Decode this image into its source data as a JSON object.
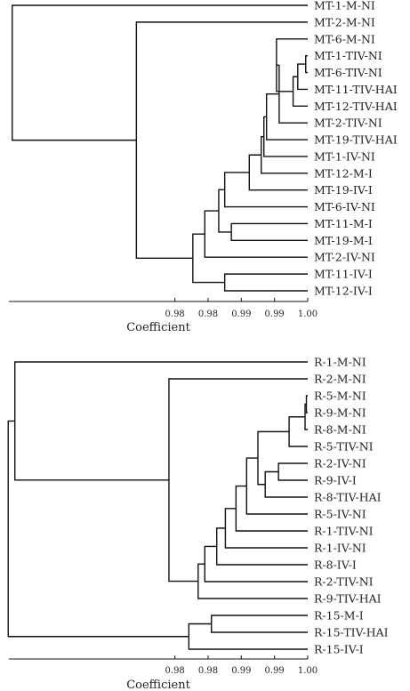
{
  "panels": [
    {
      "id": "top",
      "axis_title": "Coefficient",
      "ticks": [
        {
          "value": 0.98,
          "label": "0.98"
        },
        {
          "value": 0.985,
          "label": "0.98"
        },
        {
          "value": 0.99,
          "label": "0.99"
        },
        {
          "value": 0.995,
          "label": "0.99"
        },
        {
          "value": 1.0,
          "label": "1.00"
        }
      ],
      "leaves": [
        "MT-1-M-NI",
        "MT-2-M-NI",
        "MT-6-M-NI",
        "MT-1-TIV-NI",
        "MT-6-TIV-NI",
        "MT-11-TIV-HAI",
        "MT-12-TIV-HAI",
        "MT-2-TIV-NI",
        "MT-19-TIV-HAI",
        "MT-1-IV-NI",
        "MT-12-M-I",
        "MT-19-IV-I",
        "MT-6-IV-NI",
        "MT-11-M-I",
        "MT-19-M-I",
        "MT-2-IV-NI",
        "MT-11-IV-I",
        "MT-12-IV-I"
      ],
      "merges": [
        {
          "a": "L3",
          "b": "L4",
          "height": 0.9997
        },
        {
          "a": "L5",
          "b": "M0",
          "height": 0.9985
        },
        {
          "a": "L6",
          "b": "M1",
          "height": 0.9978
        },
        {
          "a": "L2",
          "b": "M2",
          "height": 0.9953
        },
        {
          "a": "M3",
          "b": "L7",
          "height": 0.9957
        },
        {
          "a": "M4",
          "b": "L8",
          "height": 0.9938
        },
        {
          "a": "M5",
          "b": "L9",
          "height": 0.9934
        },
        {
          "a": "M6",
          "b": "L10",
          "height": 0.993
        },
        {
          "a": "M7",
          "b": "L11",
          "height": 0.9912
        },
        {
          "a": "M8",
          "b": "L12",
          "height": 0.9875
        },
        {
          "a": "L13",
          "b": "L14",
          "height": 0.9885
        },
        {
          "a": "M9",
          "b": "M10",
          "height": 0.9866
        },
        {
          "a": "M11",
          "b": "L15",
          "height": 0.9845
        },
        {
          "a": "L16",
          "b": "L17",
          "height": 0.9875
        },
        {
          "a": "M12",
          "b": "M13",
          "height": 0.9827
        },
        {
          "a": "L1",
          "b": "M14",
          "height": 0.9742
        },
        {
          "a": "L0",
          "b": "M15",
          "height": 0.9555
        }
      ]
    },
    {
      "id": "bottom",
      "axis_title": "Coefficient",
      "ticks": [
        {
          "value": 0.98,
          "label": "0.98"
        },
        {
          "value": 0.985,
          "label": "0.98"
        },
        {
          "value": 0.99,
          "label": "0.99"
        },
        {
          "value": 0.995,
          "label": "0.99"
        },
        {
          "value": 1.0,
          "label": "1.00"
        }
      ],
      "leaves": [
        "R-1-M-NI",
        "R-2-M-NI",
        "R-5-M-NI",
        "R-9-M-NI",
        "R-8-M-NI",
        "R-5-TIV-NI",
        "R-2-IV-NI",
        "R-9-IV-I",
        "R-8-TIV-HAI",
        "R-5-IV-NI",
        "R-1-TIV-NI",
        "R-1-IV-NI",
        "R-8-IV-I",
        "R-2-TIV-NI",
        "R-9-TIV-HAI",
        "R-15-M-I",
        "R-15-TIV-HAI",
        "R-15-IV-I"
      ],
      "merges": [
        {
          "a": "L2",
          "b": "L3",
          "height": 0.9998
        },
        {
          "a": "M0",
          "b": "L4",
          "height": 0.9996
        },
        {
          "a": "M1",
          "b": "L5",
          "height": 0.9972
        },
        {
          "a": "L6",
          "b": "L7",
          "height": 0.9956
        },
        {
          "a": "M3",
          "b": "L8",
          "height": 0.9936
        },
        {
          "a": "M2",
          "b": "M4",
          "height": 0.9925
        },
        {
          "a": "M5",
          "b": "L9",
          "height": 0.9908
        },
        {
          "a": "M6",
          "b": "L10",
          "height": 0.9892
        },
        {
          "a": "M7",
          "b": "L11",
          "height": 0.9876
        },
        {
          "a": "M8",
          "b": "L12",
          "height": 0.9863
        },
        {
          "a": "M9",
          "b": "L13",
          "height": 0.9845
        },
        {
          "a": "M10",
          "b": "L14",
          "height": 0.9835
        },
        {
          "a": "L1",
          "b": "M11",
          "height": 0.9791
        },
        {
          "a": "L15",
          "b": "L16",
          "height": 0.9855
        },
        {
          "a": "M13",
          "b": "L17",
          "height": 0.9821
        },
        {
          "a": "L0",
          "b": "M12",
          "height": 0.9559
        },
        {
          "a": "M14",
          "b": "M15",
          "height": 0.9549
        }
      ]
    }
  ]
}
